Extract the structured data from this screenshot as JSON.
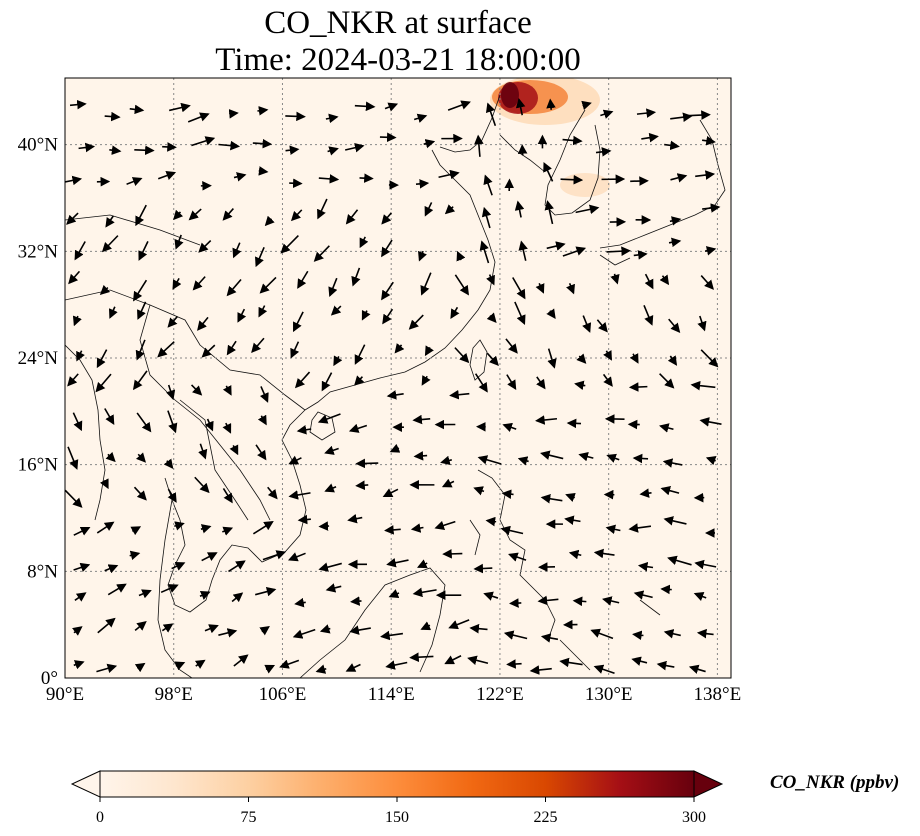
{
  "title": {
    "line1": "CO_NKR at surface",
    "line2": "Time: 2024-03-21 18:00:00"
  },
  "map": {
    "lon_range": [
      90,
      139
    ],
    "lat_range": [
      0,
      45
    ],
    "lon_ticks": [
      90,
      98,
      106,
      114,
      122,
      130,
      138
    ],
    "lat_ticks": [
      0,
      8,
      16,
      24,
      32,
      40
    ],
    "lon_tick_labels": [
      "90°E",
      "98°E",
      "106°E",
      "114°E",
      "122°E",
      "130°E",
      "138°E"
    ],
    "lat_tick_labels": [
      "0°",
      "8°N",
      "16°N",
      "24°N",
      "32°N",
      "40°N"
    ],
    "gridlines": true,
    "field_base_color": "#fff5ea",
    "plume_colors": [
      "#fdd0a2",
      "#f16913",
      "#a50f15",
      "#67000d"
    ]
  },
  "colorbar": {
    "label": "CO_NKR (ppbv)",
    "tick_labels": [
      "0",
      "75",
      "150",
      "225",
      "300"
    ],
    "colors": [
      "#fff5eb",
      "#fee6ce",
      "#fdd0a2",
      "#fdae6b",
      "#fd8d3c",
      "#f16913",
      "#d94801",
      "#a50f15",
      "#67000d"
    ],
    "extend": "both"
  }
}
